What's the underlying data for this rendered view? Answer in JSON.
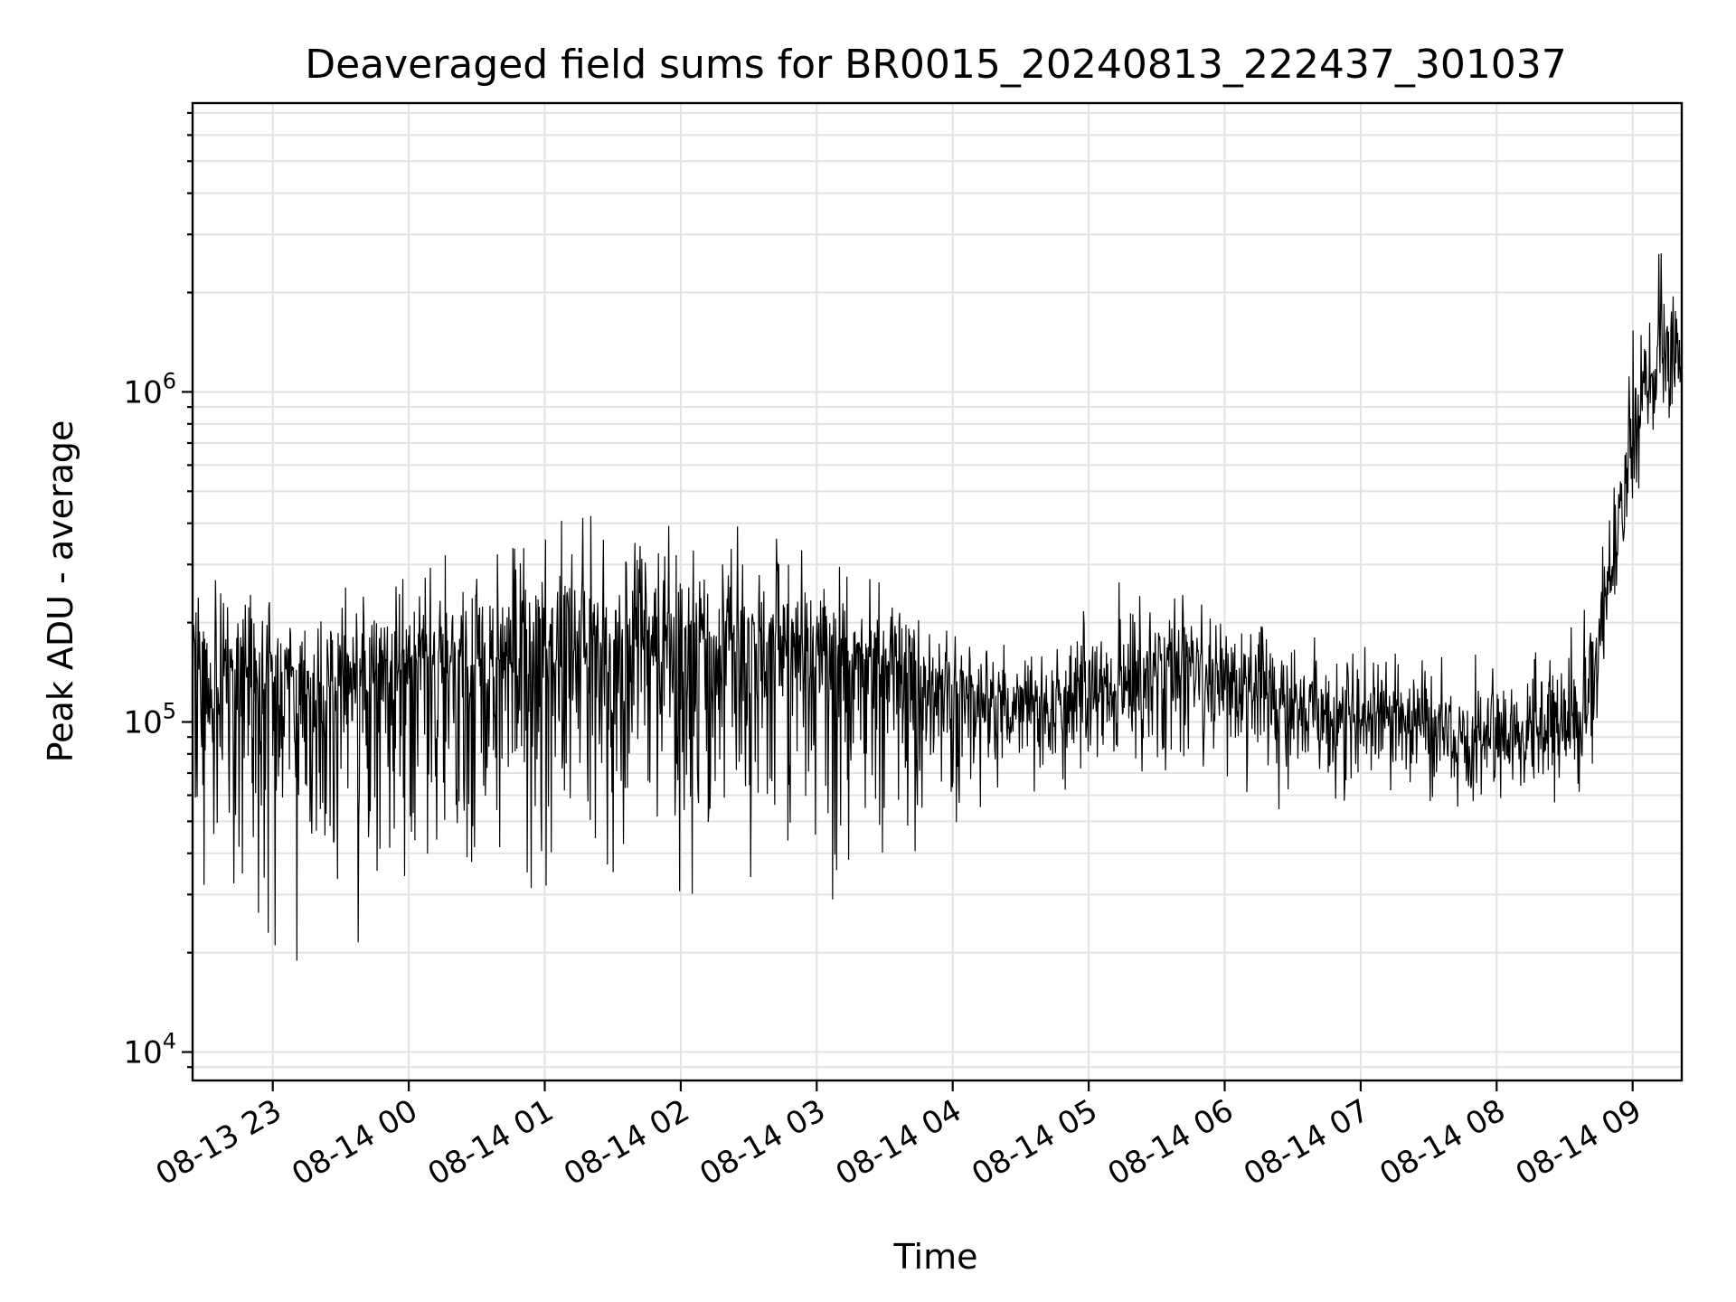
{
  "chart_data": {
    "type": "line",
    "title": "Deaveraged field sums for BR0015_20240813_222437_301037",
    "xlabel": "Time",
    "ylabel": "Peak ADU - average",
    "yscale": "log",
    "grid": true,
    "line_color": "#000000",
    "xlim": [
      "2024-08-13 22:24:37",
      "2024-08-14 09:21:40"
    ],
    "ylim": [
      8200,
      7500000
    ],
    "x_ticks": [
      {
        "value": "2024-08-13 23:00",
        "label": "08-13 23"
      },
      {
        "value": "2024-08-14 00:00",
        "label": "08-14 00"
      },
      {
        "value": "2024-08-14 01:00",
        "label": "08-14 01"
      },
      {
        "value": "2024-08-14 02:00",
        "label": "08-14 02"
      },
      {
        "value": "2024-08-14 03:00",
        "label": "08-14 03"
      },
      {
        "value": "2024-08-14 04:00",
        "label": "08-14 04"
      },
      {
        "value": "2024-08-14 05:00",
        "label": "08-14 05"
      },
      {
        "value": "2024-08-14 06:00",
        "label": "08-14 06"
      },
      {
        "value": "2024-08-14 07:00",
        "label": "08-14 07"
      },
      {
        "value": "2024-08-14 08:00",
        "label": "08-14 08"
      },
      {
        "value": "2024-08-14 09:00",
        "label": "08-14 09"
      }
    ],
    "y_ticks": [
      {
        "value": 10000,
        "base": "10",
        "exp": "4"
      },
      {
        "value": 100000,
        "base": "10",
        "exp": "5"
      },
      {
        "value": 1000000,
        "base": "10",
        "exp": "6"
      }
    ],
    "series": [
      {
        "x": [
          "2024-08-13 22:24:37",
          "2024-08-13 22:40",
          "2024-08-13 23:00",
          "2024-08-13 23:20",
          "2024-08-13 23:40",
          "2024-08-14 00:00",
          "2024-08-14 00:20",
          "2024-08-14 00:40",
          "2024-08-14 01:00",
          "2024-08-14 01:20",
          "2024-08-14 01:40",
          "2024-08-14 02:00",
          "2024-08-14 02:20",
          "2024-08-14 02:40",
          "2024-08-14 03:00",
          "2024-08-14 03:20",
          "2024-08-14 03:40",
          "2024-08-14 04:00",
          "2024-08-14 04:20",
          "2024-08-14 04:40",
          "2024-08-14 05:00",
          "2024-08-14 05:20",
          "2024-08-14 05:40",
          "2024-08-14 06:00",
          "2024-08-14 06:20",
          "2024-08-14 06:40",
          "2024-08-14 07:00",
          "2024-08-14 07:20",
          "2024-08-14 07:40",
          "2024-08-14 08:00",
          "2024-08-14 08:20",
          "2024-08-14 08:40",
          "2024-08-14 08:55",
          "2024-08-14 09:05",
          "2024-08-14 09:15",
          "2024-08-14 09:21:40"
        ],
        "median": [
          140000,
          135000,
          130000,
          115000,
          125000,
          150000,
          150000,
          140000,
          170000,
          160000,
          165000,
          175000,
          175000,
          170000,
          160000,
          150000,
          140000,
          125000,
          115000,
          110000,
          118000,
          135000,
          145000,
          140000,
          115000,
          105000,
          100000,
          100000,
          95000,
          90000,
          95000,
          100000,
          420000,
          1200000,
          1300000,
          1300000
        ],
        "envelope_high": [
          300000,
          280000,
          260000,
          260000,
          300000,
          320000,
          320000,
          360000,
          400000,
          420000,
          450000,
          480000,
          420000,
          380000,
          330000,
          280000,
          250000,
          200000,
          170000,
          180000,
          240000,
          280000,
          270000,
          240000,
          210000,
          190000,
          180000,
          170000,
          160000,
          160000,
          200000,
          220000,
          800000,
          3000000,
          2800000,
          2200000
        ],
        "envelope_low": [
          30000,
          25000,
          20000,
          18000,
          22000,
          28000,
          26000,
          30000,
          32000,
          30000,
          28000,
          27000,
          30000,
          30000,
          28000,
          30000,
          35000,
          40000,
          55000,
          60000,
          65000,
          70000,
          72000,
          68000,
          55000,
          52000,
          52000,
          55000,
          55000,
          50000,
          55000,
          60000,
          150000,
          600000,
          700000,
          750000
        ]
      }
    ]
  }
}
